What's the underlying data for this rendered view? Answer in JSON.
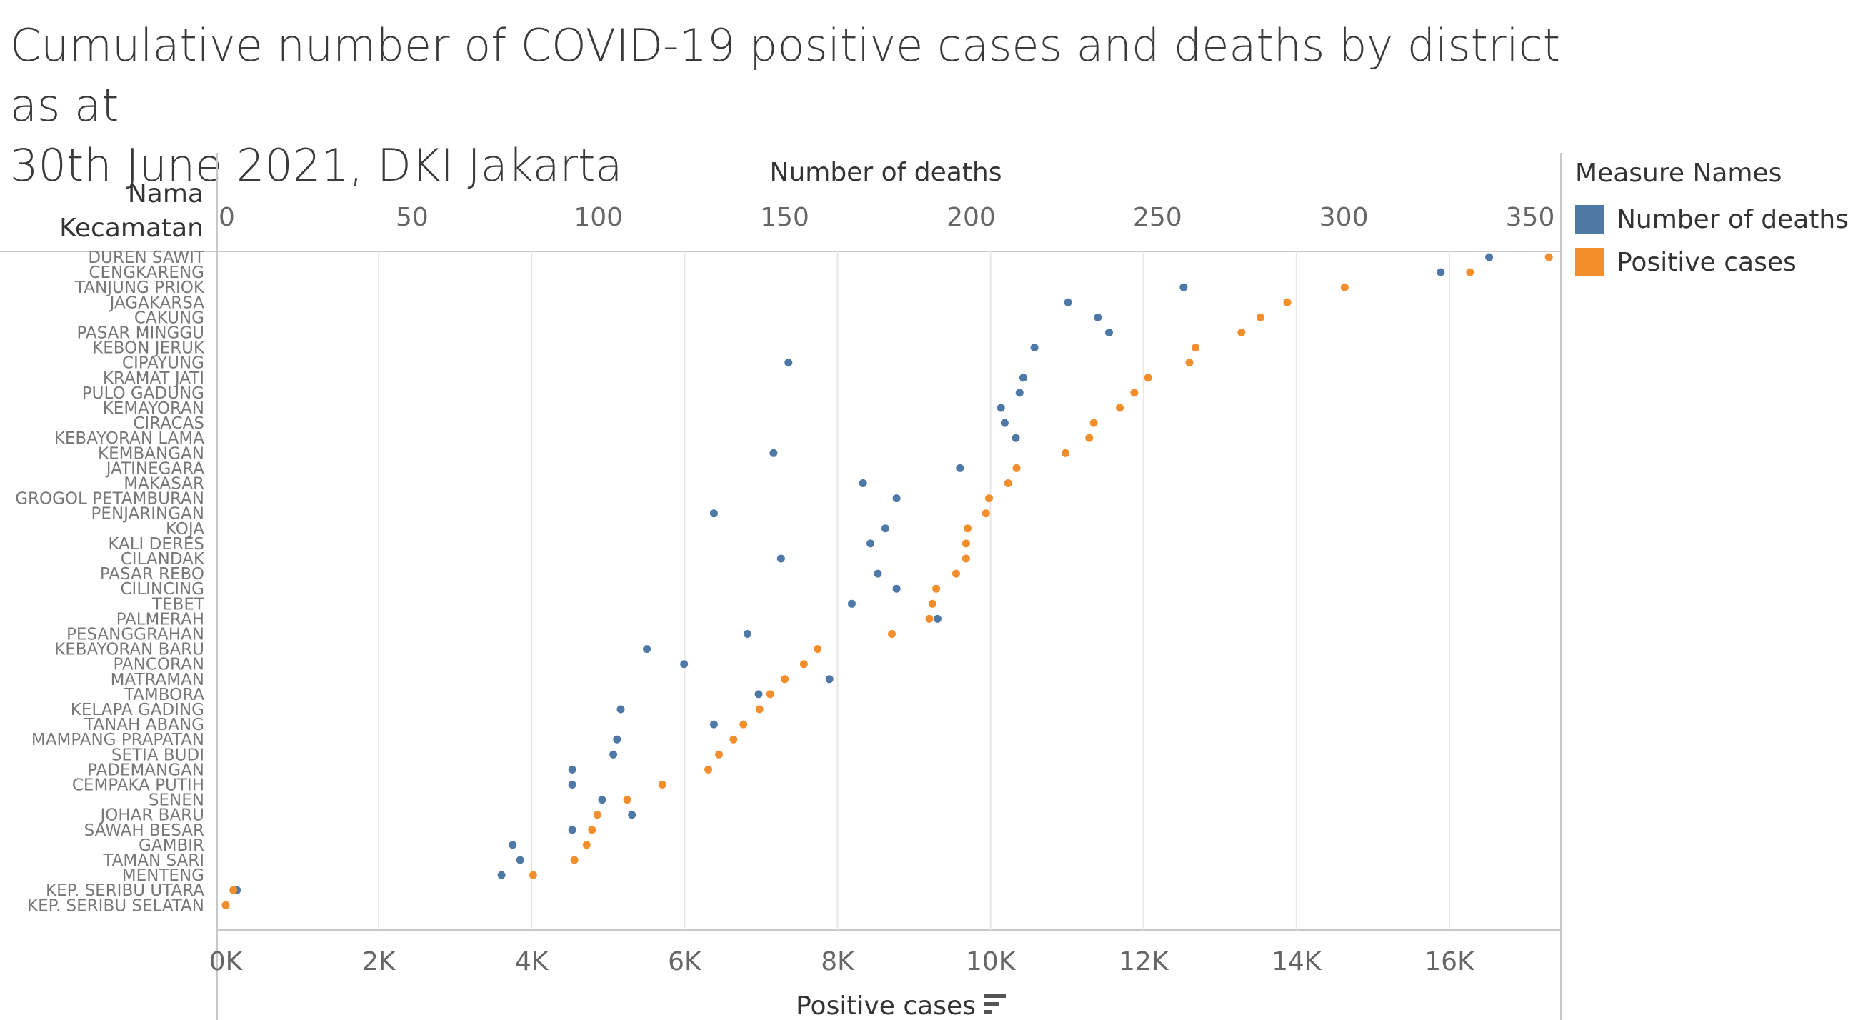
{
  "title_lines": [
    "Cumulative number of COVID-19 positive cases  and deaths by district as at",
    "30th June 2021, DKI Jakarta"
  ],
  "row_header": [
    "Nama",
    "Kecamatan"
  ],
  "legend": {
    "title": "Measure Names",
    "items": [
      {
        "label": "Number of deaths",
        "color": "#4e79a7"
      },
      {
        "label": "Positive cases",
        "color": "#f28e2b"
      }
    ]
  },
  "sort_icon": "sort-descending-icon",
  "chart_data": {
    "type": "scatter",
    "top_axis": {
      "label": "Number of deaths",
      "range": [
        0,
        355
      ],
      "ticks": [
        0,
        50,
        100,
        150,
        200,
        250,
        300,
        350
      ],
      "tick_labels": [
        "0",
        "50",
        "100",
        "150",
        "200",
        "250",
        "300",
        "350"
      ]
    },
    "bottom_axis": {
      "label": "Positive cases",
      "range": [
        0,
        17600
      ],
      "ticks": [
        0,
        2000,
        4000,
        6000,
        8000,
        10000,
        12000,
        14000,
        16000
      ],
      "tick_labels": [
        "0K",
        "2K",
        "4K",
        "6K",
        "8K",
        "10K",
        "12K",
        "14K",
        "16K"
      ]
    },
    "grid": true,
    "legend_position": "right",
    "categories": [
      "DUREN SAWIT",
      "CENGKARENG",
      "TANJUNG PRIOK",
      "JAGAKARSA",
      "CAKUNG",
      "PASAR MINGGU",
      "KEBON JERUK",
      "CIPAYUNG",
      "KRAMAT JATI",
      "PULO GADUNG",
      "KEMAYORAN",
      "CIRACAS",
      "KEBAYORAN LAMA",
      "KEMBANGAN",
      "JATINEGARA",
      "MAKASAR",
      "GROGOL PETAMBURAN",
      "PENJARINGAN",
      "KOJA",
      "KALI DERES",
      "CILANDAK",
      "PASAR REBO",
      "CILINCING",
      "TEBET",
      "PALMERAH",
      "PESANGGRAHAN",
      "KEBAYORAN BARU",
      "PANCORAN",
      "MATRAMAN",
      "TAMBORA",
      "KELAPA GADING",
      "TANAH ABANG",
      "MAMPANG PRAPATAN",
      "SETIA BUDI",
      "PADEMANGAN",
      "CEMPAKA PUTIH",
      "SENEN",
      "JOHAR BARU",
      "SAWAH BESAR",
      "GAMBIR",
      "TAMAN SARI",
      "MENTENG",
      "KEP. SERIBU UTARA",
      "KEP. SERIBU SELATAN"
    ],
    "series": [
      {
        "name": "Number of deaths",
        "axis": "top",
        "color": "#4e79a7",
        "values": [
          339,
          326,
          257,
          226,
          234,
          237,
          217,
          151,
          214,
          213,
          208,
          209,
          212,
          147,
          197,
          171,
          180,
          131,
          177,
          173,
          149,
          175,
          180,
          168,
          191,
          140,
          113,
          123,
          162,
          143,
          106,
          131,
          105,
          104,
          93,
          93,
          101,
          109,
          93,
          77,
          79,
          74,
          3,
          0
        ]
      },
      {
        "name": "Positive cases",
        "axis": "bottom",
        "color": "#f28e2b",
        "values": [
          17300,
          16270,
          14630,
          13880,
          13530,
          13280,
          12680,
          12600,
          12060,
          11880,
          11690,
          11350,
          11290,
          10980,
          10340,
          10230,
          9980,
          9940,
          9700,
          9680,
          9680,
          9550,
          9290,
          9240,
          9200,
          8710,
          7740,
          7560,
          7310,
          7120,
          6980,
          6770,
          6640,
          6450,
          6310,
          5710,
          5250,
          4860,
          4790,
          4720,
          4560,
          4020,
          100,
          0
        ]
      }
    ]
  }
}
